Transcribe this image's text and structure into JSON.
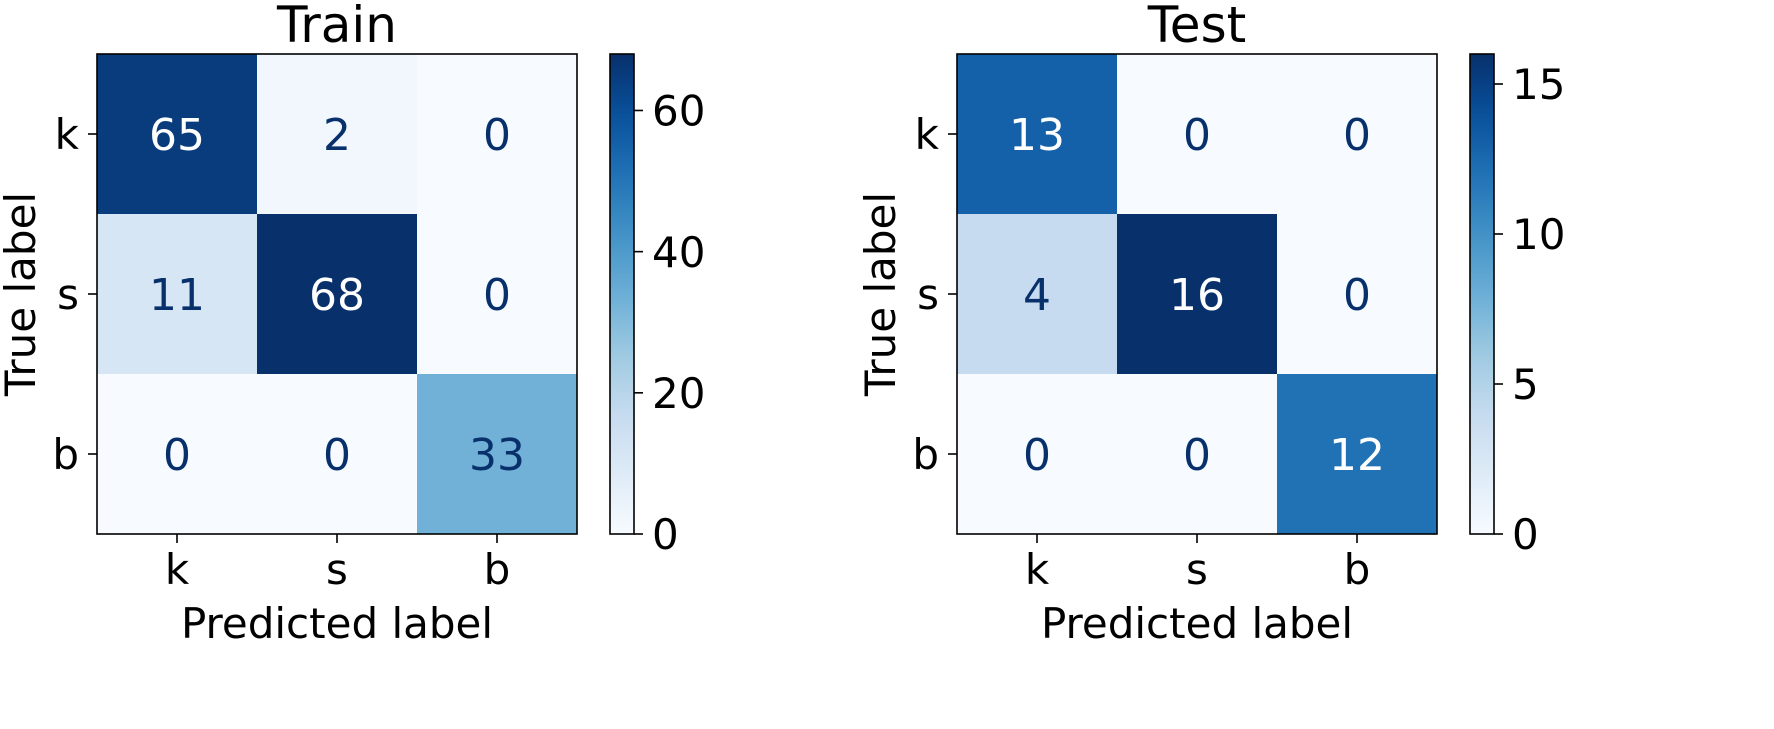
{
  "chart_data": [
    {
      "type": "heatmap",
      "title": "Train",
      "xlabel": "Predicted label",
      "ylabel": "True label",
      "x_categories": [
        "k",
        "s",
        "b"
      ],
      "y_categories": [
        "k",
        "s",
        "b"
      ],
      "values": [
        [
          65,
          2,
          0
        ],
        [
          11,
          68,
          0
        ],
        [
          0,
          0,
          33
        ]
      ],
      "colormap": "Blues",
      "colorbar": {
        "vmin": 0,
        "vmax": 68,
        "ticks": [
          0,
          20,
          40,
          60
        ],
        "tick_labels": [
          "0",
          "20",
          "40",
          "60"
        ]
      },
      "grid": false
    },
    {
      "type": "heatmap",
      "title": "Test",
      "xlabel": "Predicted label",
      "ylabel": "True label",
      "x_categories": [
        "k",
        "s",
        "b"
      ],
      "y_categories": [
        "k",
        "s",
        "b"
      ],
      "values": [
        [
          13,
          0,
          0
        ],
        [
          4,
          16,
          0
        ],
        [
          0,
          0,
          12
        ]
      ],
      "colormap": "Blues",
      "colorbar": {
        "vmin": 0,
        "vmax": 16,
        "ticks": [
          0,
          5,
          10,
          15
        ],
        "tick_labels": [
          "0",
          "5",
          "10",
          "15"
        ]
      },
      "grid": false
    }
  ]
}
